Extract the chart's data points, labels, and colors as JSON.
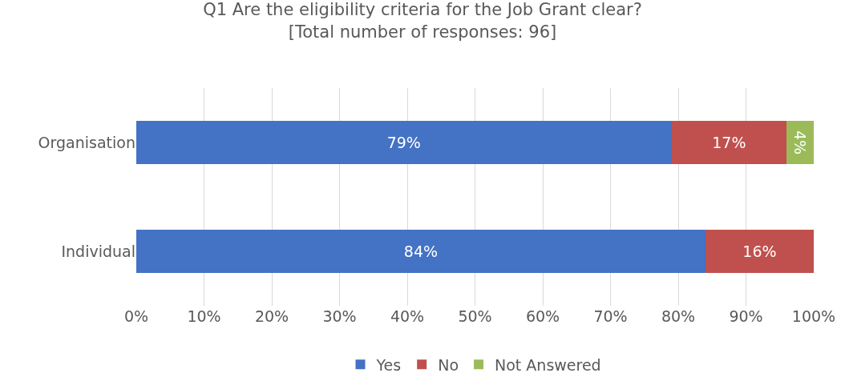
{
  "chart_data": {
    "type": "bar",
    "orientation": "horizontal",
    "stacked": true,
    "title": "Q1 Are the eligibility criteria for the Job Grant clear?",
    "subtitle": "[Total number of responses: 96]",
    "categories": [
      "Organisation",
      "Individual"
    ],
    "series": [
      {
        "name": "Yes",
        "color": "#4472c4",
        "values": [
          79,
          84
        ],
        "value_labels": [
          "79%",
          "84%"
        ]
      },
      {
        "name": "No",
        "color": "#c0504d",
        "values": [
          17,
          16
        ],
        "value_labels": [
          "17%",
          "16%"
        ]
      },
      {
        "name": "Not Answered",
        "color": "#9bbb59",
        "values": [
          4,
          null
        ],
        "value_labels": [
          "4%",
          null
        ]
      }
    ],
    "xlim": [
      0,
      100
    ],
    "xticks": [
      {
        "value": 0,
        "label": "0%"
      },
      {
        "value": 10,
        "label": "10%"
      },
      {
        "value": 20,
        "label": "20%"
      },
      {
        "value": 30,
        "label": "30%"
      },
      {
        "value": 40,
        "label": "40%"
      },
      {
        "value": 50,
        "label": "50%"
      },
      {
        "value": 60,
        "label": "60%"
      },
      {
        "value": 70,
        "label": "70%"
      },
      {
        "value": 80,
        "label": "80%"
      },
      {
        "value": 90,
        "label": "90%"
      },
      {
        "value": 100,
        "label": "100%"
      }
    ],
    "grid": "x",
    "legend": "bottom"
  }
}
